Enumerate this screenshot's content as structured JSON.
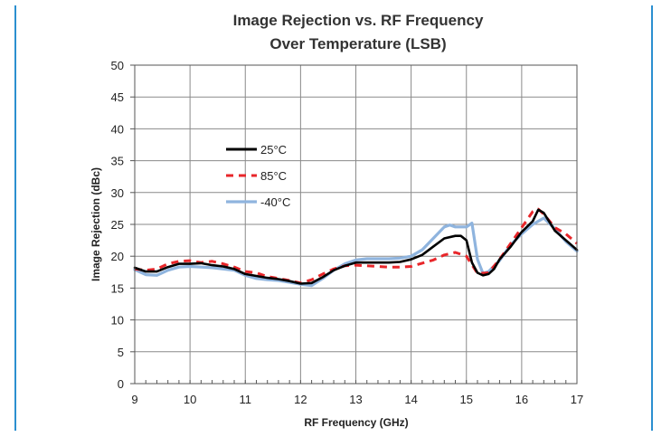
{
  "chart_data": {
    "type": "line",
    "title": "Image Rejection vs. RF Frequency",
    "subtitle": "Over Temperature  (LSB)",
    "xlabel": "RF Frequency (GHz)",
    "ylabel": "Image Rejection (dBc)",
    "xlim": [
      9,
      17
    ],
    "ylim": [
      0,
      50
    ],
    "xticks": [
      "9",
      "10",
      "11",
      "12",
      "13",
      "14",
      "15",
      "16",
      "17"
    ],
    "yticks": [
      "0",
      "5",
      "10",
      "15",
      "20",
      "25",
      "30",
      "35",
      "40",
      "45",
      "50"
    ],
    "grid": true,
    "legend_position": "upper-left",
    "series": [
      {
        "name": "25°C",
        "color": "#000000",
        "style": "solid",
        "x": [
          9.0,
          9.2,
          9.4,
          9.6,
          9.8,
          10.0,
          10.2,
          10.4,
          10.6,
          10.8,
          11.0,
          11.2,
          11.4,
          11.6,
          11.8,
          12.0,
          12.2,
          12.4,
          12.6,
          12.8,
          13.0,
          13.2,
          13.4,
          13.6,
          13.8,
          14.0,
          14.2,
          14.4,
          14.6,
          14.8,
          14.9,
          15.0,
          15.1,
          15.2,
          15.3,
          15.4,
          15.5,
          15.6,
          15.8,
          16.0,
          16.2,
          16.3,
          16.4,
          16.6,
          16.8,
          17.0
        ],
        "y": [
          18.2,
          17.6,
          17.6,
          18.3,
          18.8,
          18.8,
          18.9,
          18.6,
          18.4,
          18.0,
          17.2,
          16.9,
          16.6,
          16.4,
          16.1,
          15.7,
          15.8,
          16.7,
          17.8,
          18.5,
          19.0,
          19.0,
          19.0,
          19.0,
          19.1,
          19.5,
          20.2,
          21.5,
          22.8,
          23.2,
          23.2,
          22.5,
          19.0,
          17.4,
          17.0,
          17.2,
          18.0,
          19.5,
          21.5,
          23.8,
          25.5,
          27.3,
          26.8,
          24.0,
          22.5,
          21.0
        ]
      },
      {
        "name": "85°C",
        "color": "#e8262a",
        "style": "dashed",
        "x": [
          9.0,
          9.2,
          9.4,
          9.6,
          9.8,
          10.0,
          10.2,
          10.4,
          10.6,
          10.8,
          11.0,
          11.2,
          11.4,
          11.6,
          11.8,
          12.0,
          12.2,
          12.4,
          12.6,
          12.8,
          13.0,
          13.2,
          13.4,
          13.6,
          13.8,
          14.0,
          14.2,
          14.4,
          14.6,
          14.8,
          15.0,
          15.2,
          15.4,
          15.6,
          15.8,
          16.0,
          16.2,
          16.3,
          16.4,
          16.6,
          16.8,
          17.0
        ],
        "y": [
          18.0,
          17.8,
          18.0,
          18.8,
          19.2,
          19.3,
          19.0,
          19.2,
          18.8,
          18.3,
          17.6,
          17.4,
          16.8,
          16.5,
          16.2,
          15.8,
          16.3,
          17.2,
          18.0,
          18.5,
          18.6,
          18.5,
          18.4,
          18.3,
          18.3,
          18.4,
          18.9,
          19.4,
          20.2,
          20.6,
          20.0,
          17.3,
          17.4,
          19.5,
          22.0,
          24.5,
          27.0,
          27.4,
          26.6,
          24.5,
          23.5,
          22.0
        ]
      },
      {
        "name": "-40°C",
        "color": "#8fb4de",
        "style": "solid",
        "x": [
          9.0,
          9.2,
          9.4,
          9.6,
          9.8,
          10.0,
          10.2,
          10.4,
          10.6,
          10.8,
          11.0,
          11.2,
          11.4,
          11.6,
          11.8,
          12.0,
          12.2,
          12.4,
          12.6,
          12.8,
          13.0,
          13.2,
          13.4,
          13.6,
          13.8,
          14.0,
          14.2,
          14.4,
          14.6,
          14.7,
          14.8,
          15.0,
          15.1,
          15.2,
          15.3,
          15.4,
          15.6,
          15.8,
          16.0,
          16.2,
          16.4,
          16.6,
          16.8,
          17.0
        ],
        "y": [
          17.9,
          17.1,
          17.0,
          17.8,
          18.3,
          18.4,
          18.3,
          18.2,
          18.0,
          17.8,
          17.0,
          16.5,
          16.3,
          16.2,
          15.9,
          15.6,
          15.4,
          16.5,
          17.8,
          18.8,
          19.4,
          19.6,
          19.6,
          19.6,
          19.7,
          20.0,
          21.0,
          22.8,
          24.6,
          24.9,
          24.6,
          24.6,
          25.2,
          19.5,
          17.3,
          17.6,
          19.3,
          21.8,
          23.5,
          25.0,
          26.0,
          24.3,
          22.3,
          20.8
        ]
      }
    ]
  }
}
